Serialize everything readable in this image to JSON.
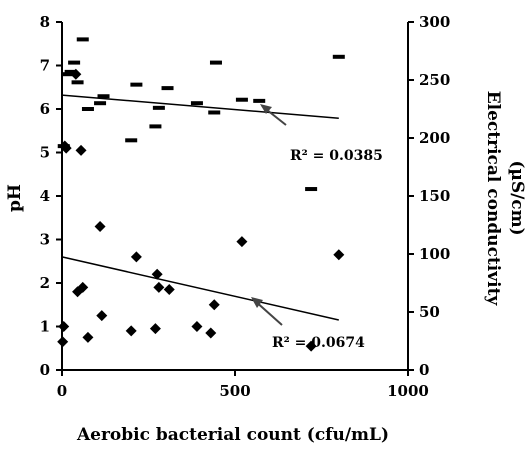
{
  "chart_data": {
    "type": "scatter",
    "xlabel": "Aerobic bacterial count (cfu/mL)",
    "ylabel_left": "pH",
    "ylabel_right_line1": "Electrical conductivity",
    "ylabel_right_line2": "(µS/cm)",
    "xlim": [
      0,
      1000
    ],
    "ylim_left": [
      0,
      8
    ],
    "ylim_right": [
      0,
      300
    ],
    "x_ticks": [
      "0",
      "500",
      "1000"
    ],
    "y_left_ticks": [
      "0",
      "1",
      "2",
      "3",
      "4",
      "5",
      "6",
      "7",
      "8"
    ],
    "y_right_ticks": [
      "0",
      "50",
      "100",
      "150",
      "200",
      "250",
      "300"
    ],
    "series": [
      {
        "axis": "left",
        "marker": "diamond",
        "points": [
          [
            2,
            0.65
          ],
          [
            5,
            1.0
          ],
          [
            8,
            5.15
          ],
          [
            12,
            5.1
          ],
          [
            40,
            6.8
          ],
          [
            45,
            1.8
          ],
          [
            55,
            5.05
          ],
          [
            60,
            1.9
          ],
          [
            75,
            0.75
          ],
          [
            110,
            3.3
          ],
          [
            115,
            1.25
          ],
          [
            200,
            0.9
          ],
          [
            215,
            2.6
          ],
          [
            270,
            0.95
          ],
          [
            275,
            2.2
          ],
          [
            280,
            1.9
          ],
          [
            310,
            1.85
          ],
          [
            390,
            1.0
          ],
          [
            430,
            0.85
          ],
          [
            440,
            1.5
          ],
          [
            520,
            2.95
          ],
          [
            720,
            0.55
          ],
          [
            800,
            2.65
          ]
        ],
        "trend": {
          "x": [
            0,
            800
          ],
          "y": [
            2.6,
            1.15
          ]
        },
        "r2_label": "R² = 0.0674"
      },
      {
        "axis": "right",
        "marker": "dash",
        "points": [
          [
            5,
            193
          ],
          [
            15,
            255
          ],
          [
            25,
            257
          ],
          [
            35,
            265
          ],
          [
            45,
            248
          ],
          [
            60,
            285
          ],
          [
            75,
            225
          ],
          [
            110,
            230
          ],
          [
            120,
            236
          ],
          [
            200,
            198
          ],
          [
            215,
            246
          ],
          [
            270,
            210
          ],
          [
            280,
            226
          ],
          [
            305,
            243
          ],
          [
            390,
            230
          ],
          [
            440,
            222
          ],
          [
            445,
            265
          ],
          [
            520,
            233
          ],
          [
            570,
            232
          ],
          [
            720,
            156
          ],
          [
            800,
            270
          ]
        ],
        "trend": {
          "x": [
            0,
            800
          ],
          "y": [
            237,
            217
          ]
        },
        "r2_label": "R² = 0.0385"
      }
    ]
  }
}
